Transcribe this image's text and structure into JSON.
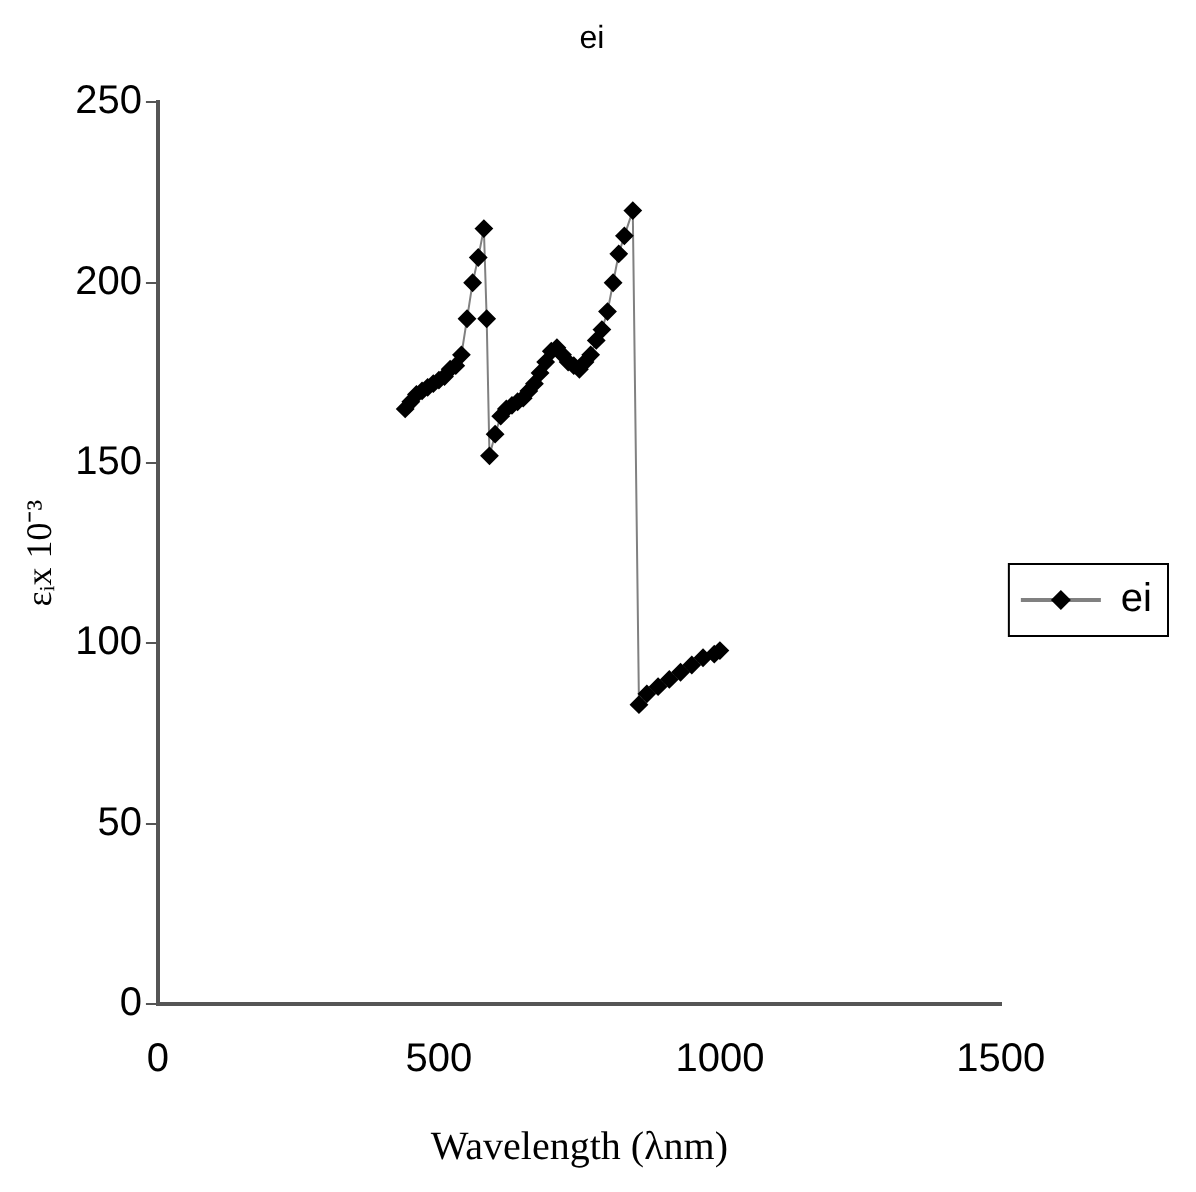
{
  "chart_data": {
    "type": "line",
    "title": "ei",
    "xlabel": "Wavelength (λnm)",
    "ylabel": "εᵢx 10⁻³",
    "xlim": [
      0,
      1500
    ],
    "xticks": [
      0,
      500,
      1000,
      1500
    ],
    "ylim": [
      0,
      250
    ],
    "yticks": [
      0,
      50,
      100,
      150,
      200,
      250
    ],
    "grid": false,
    "legend": "right",
    "marker": "diamond",
    "line_style": "solid",
    "series": [
      {
        "name": "ei",
        "color": "#000000",
        "x": [
          440,
          450,
          460,
          470,
          480,
          490,
          500,
          510,
          520,
          530,
          540,
          550,
          560,
          570,
          580,
          585,
          590,
          600,
          610,
          620,
          630,
          640,
          650,
          660,
          670,
          680,
          690,
          700,
          710,
          720,
          730,
          740,
          750,
          760,
          770,
          780,
          790,
          800,
          810,
          820,
          830,
          845,
          856,
          870,
          890,
          910,
          930,
          950,
          970,
          990,
          1000
        ],
        "values": [
          165,
          167,
          169,
          170,
          171,
          172,
          173,
          174,
          176,
          177,
          180,
          190,
          200,
          207,
          215,
          190,
          152,
          158,
          163,
          165,
          166,
          167,
          168,
          170,
          172,
          175,
          178,
          181,
          182,
          180,
          178,
          177,
          176,
          178,
          180,
          184,
          187,
          192,
          200,
          208,
          213,
          220,
          83,
          86,
          88,
          90,
          92,
          94,
          96,
          97,
          98
        ]
      }
    ]
  }
}
